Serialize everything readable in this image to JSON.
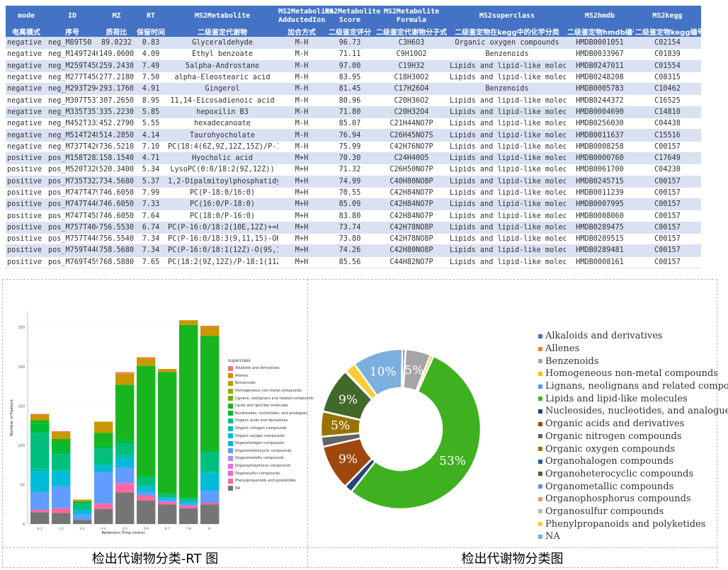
{
  "table": {
    "headers": [
      "mode",
      "ID",
      "MZ",
      "RT",
      "MS2Metabolite",
      "MS2Metabolite\nAdductedIon",
      "MS2Metabolite\nScore",
      "MS2Metabolite\nFormula",
      "MS2superclass",
      "MS2hmdb",
      "MS2kegg"
    ],
    "headers_cn": [
      "电离模式",
      "序号",
      "质荷比",
      "保留时间",
      "二级鉴定代谢物",
      "加合方式",
      "二级鉴定评分",
      "二级鉴定代谢物分子式",
      "二级鉴定物在kegg中的化学分类",
      "二级鉴定物hmdb编号",
      "二级鉴定物kegg编号"
    ],
    "rows": [
      [
        "negative",
        "neg_M89T50",
        "89.0232",
        "0.83",
        "Glyceraldehyde",
        "M-H",
        "96.73",
        "C3H6O3",
        "Organic oxygen compounds",
        "HMDB0001051",
        "C02154"
      ],
      [
        "negative",
        "neg_M149T246",
        "149.0600",
        "4.09",
        "Ethyl benzoate",
        "M-H",
        "71.11",
        "C9H10O2",
        "Benzenoids",
        "HMDB0033967",
        "C01839"
      ],
      [
        "negative",
        "neg_M259T450",
        "259.2430",
        "7.49",
        "5alpha-Androstane",
        "M-H",
        "97.00",
        "C19H32",
        "Lipids and lipid-like molecules",
        "HMDB0247011",
        "C01554"
      ],
      [
        "negative",
        "neg_M277T450",
        "277.2180",
        "7.50",
        "alpha-Eleostearic acid",
        "M-H",
        "83.95",
        "C18H30O2",
        "Lipids and lipid-like molecules",
        "HMDB0248208",
        "C08315"
      ],
      [
        "negative",
        "neg_M293T294",
        "293.1760",
        "4.91",
        "Gingerol",
        "M-H",
        "81.45",
        "C17H26O4",
        "Benzenoids",
        "HMDB0005783",
        "C10462"
      ],
      [
        "negative",
        "neg_M307T537",
        "307.2650",
        "8.95",
        "11,14-Eicosadienoic acid",
        "M-H",
        "80.96",
        "C20H36O2",
        "Lipids and lipid-like molecules",
        "HMDB0244372",
        "C16525"
      ],
      [
        "negative",
        "neg_M335T351",
        "335.2230",
        "5.85",
        "hepoxilin B3",
        "M-H",
        "71.80",
        "C20H32O4",
        "Lipids and lipid-like molecules",
        "HMDB0004690",
        "C14810"
      ],
      [
        "negative",
        "neg_M452T333",
        "452.2790",
        "5.55",
        "hexadecanoate",
        "M-H",
        "85.07",
        "C21H44NO7P",
        "Lipids and lipid-like molecules",
        "HMDB0256030",
        "C04438"
      ],
      [
        "negative",
        "neg_M514T248",
        "514.2850",
        "4.14",
        "Taurohyocholate",
        "M-H",
        "76.94",
        "C26H45NO7S",
        "Lipids and lipid-like molecules",
        "HMDB0011637",
        "C15516"
      ],
      [
        "negative",
        "neg_M737T426",
        "736.5210",
        "7.10",
        "PC(18:4(6Z,9Z,12Z,15Z)/P-16:0)",
        "M-H",
        "75.99",
        "C42H76NO7P",
        "Lipids and lipid-like molecules",
        "HMDB0008258",
        "C00157"
      ],
      [
        "positive",
        "pos_M158T283",
        "158.1540",
        "4.71",
        "Hyocholic acid",
        "M+H",
        "70.30",
        "C24H40O5",
        "Lipids and lipid-like molecules",
        "HMDB0000760",
        "C17649"
      ],
      [
        "positive",
        "pos_M520T320",
        "520.3400",
        "5.34",
        "LysoPC(0:0/18:2(9Z,12Z))",
        "M+H",
        "71.32",
        "C26H50NO7P",
        "Lipids and lipid-like molecules",
        "HMDB0061700",
        "C04230"
      ],
      [
        "positive",
        "pos_M735T322",
        "734.5680",
        "5.37",
        "1,2-Dipalmitoylphosphatidylcholine",
        "M+H",
        "74.99",
        "C40H80NO8P",
        "Lipids and lipid-like molecules",
        "HMDB0245715",
        "C00157"
      ],
      [
        "positive",
        "pos_M747T479",
        "746.6050",
        "7.99",
        "PC(P-18:0/16:0)",
        "M+H",
        "70.55",
        "C42H84NO7P",
        "Lipids and lipid-like molecules",
        "HMDB0011239",
        "C00157"
      ],
      [
        "positive",
        "pos_M747T440",
        "746.6050",
        "7.33",
        "PC(16:0/P-18:0)",
        "M+H",
        "85.09",
        "C42H84NO7P",
        "Lipids and lipid-like molecules",
        "HMDB0007995",
        "C00157"
      ],
      [
        "positive",
        "pos_M747T458",
        "746.6050",
        "7.64",
        "PC(18:0/P-16:0)",
        "M+H",
        "83.80",
        "C42H84NO7P",
        "Lipids and lipid-like molecules",
        "HMDB0008060",
        "C00157"
      ],
      [
        "positive",
        "pos_M757T404",
        "756.5530",
        "6.74",
        "PC(P-16:0/18:2(10E,12Z)+=O(9))",
        "M+H",
        "73.74",
        "C42H78NO8P",
        "Lipids and lipid-like molecules",
        "HMDB0289475",
        "C00157"
      ],
      [
        "positive",
        "pos_M757T440",
        "756.5540",
        "7.34",
        "PC(P-16:0/18:3(9,11,15)-OH(13))",
        "M+H",
        "73.80",
        "C42H78NO8P",
        "Lipids and lipid-like molecules",
        "HMDB0289515",
        "C00157"
      ],
      [
        "positive",
        "pos_M759T440",
        "758.5680",
        "7.34",
        "PC(P-16:0/18:1(12Z)-O(9S,10R))",
        "M+H",
        "74.26",
        "C42H80NO8P",
        "Lipids and lipid-like molecules",
        "HMDB0289481",
        "C00157"
      ],
      [
        "positive",
        "pos_M769T459",
        "768.5880",
        "7.65",
        "PC(18:2(9Z,12Z)/P-18:1(11Z))",
        "M+H",
        "85.56",
        "C44H82NO7P",
        "Lipids and lipid-like molecules",
        "HMDB0008161",
        "C00157"
      ]
    ]
  },
  "captions": {
    "left": "检出代谢物分类-RT 图",
    "right": "检出代谢物分类图"
  },
  "categories": [
    {
      "name": "Alkaloids and derivatives",
      "color": "#4472c4",
      "bar_color": "#f8766d"
    },
    {
      "name": "Allenes",
      "color": "#ed7d31",
      "bar_color": "#e58700"
    },
    {
      "name": "Benzenoids",
      "color": "#a5a5a5",
      "bar_color": "#c99800"
    },
    {
      "name": "Homogeneous non-metal compounds",
      "color": "#ffc000",
      "bar_color": "#a3a500"
    },
    {
      "name": "Lignans, neolignans and related compounds",
      "color": "#5b9bd5",
      "bar_color": "#6bb100"
    },
    {
      "name": "Lipids and lipid-like molecules",
      "color": "#3fb01f",
      "bar_color": "#18b51e"
    },
    {
      "name": "Nucleosides, nucleotides, and analogues",
      "color": "#264478",
      "bar_color": "#00ba38"
    },
    {
      "name": "Organic acids and derivatives",
      "color": "#9e480e",
      "bar_color": "#00bf7d"
    },
    {
      "name": "Organic nitrogen compounds",
      "color": "#636363",
      "bar_color": "#00c0af"
    },
    {
      "name": "Organic oxygen compounds",
      "color": "#997300",
      "bar_color": "#00bcd8"
    },
    {
      "name": "Organohalogen compounds",
      "color": "#255e91",
      "bar_color": "#00b0f6"
    },
    {
      "name": "Organoheterocyclic compounds",
      "color": "#43682b",
      "bar_color": "#619cff"
    },
    {
      "name": "Organometallic compounds",
      "color": "#698ed0",
      "bar_color": "#b983ff"
    },
    {
      "name": "Organophosphorus compounds",
      "color": "#f1975a",
      "bar_color": "#e76bf3"
    },
    {
      "name": "Organosulfur compounds",
      "color": "#b7b7b7",
      "bar_color": "#fd61d1"
    },
    {
      "name": "Phenylpropanoids and polyketides",
      "color": "#ffcd33",
      "bar_color": "#ff67a4"
    },
    {
      "name": "NA",
      "color": "#7cafdd",
      "bar_color": "#757575"
    }
  ],
  "chart_data": [
    {
      "type": "bar",
      "title": "",
      "xlabel": "Retention Time (mins)",
      "ylabel": "Number of Feature",
      "legend_title": "superclass",
      "ylim": [
        0,
        270
      ],
      "yticks": [
        0,
        50,
        100,
        150,
        200,
        250
      ],
      "categories": [
        "0-1",
        "1-2",
        "2-3",
        "3-4",
        "4-5",
        "5-6",
        "6-7",
        "7-8",
        "8-"
      ],
      "series": [
        {
          "name": "NA",
          "values": [
            15,
            14,
            5,
            19,
            40,
            30,
            25,
            20,
            25
          ]
        },
        {
          "name": "Phenylpropanoids and polyketides",
          "values": [
            3,
            6,
            0,
            7,
            10,
            6,
            3,
            3,
            2
          ]
        },
        {
          "name": "Organosulfur compounds",
          "values": [
            0,
            0,
            0,
            0,
            2,
            0,
            0,
            0,
            0
          ]
        },
        {
          "name": "Organophosphorus compounds",
          "values": [
            0,
            0,
            0,
            0,
            0,
            0,
            0,
            0,
            0
          ]
        },
        {
          "name": "Organometallic compounds",
          "values": [
            0,
            0,
            0,
            0,
            0,
            0,
            0,
            0,
            0
          ]
        },
        {
          "name": "Organoheterocyclic compounds",
          "values": [
            23,
            28,
            7,
            40,
            20,
            5,
            3,
            3,
            15
          ]
        },
        {
          "name": "Organohalogen compounds",
          "values": [
            0,
            0,
            0,
            0,
            0,
            0,
            0,
            0,
            0
          ]
        },
        {
          "name": "Organic oxygen compounds",
          "values": [
            25,
            18,
            5,
            7,
            10,
            5,
            2,
            2,
            22
          ]
        },
        {
          "name": "Organic nitrogen compounds",
          "values": [
            5,
            3,
            1,
            3,
            5,
            3,
            1,
            1,
            2
          ]
        },
        {
          "name": "Organic acids and derivatives",
          "values": [
            45,
            20,
            8,
            20,
            15,
            10,
            4,
            4,
            25
          ]
        },
        {
          "name": "Nucleosides, nucleotides, and analogues",
          "values": [
            12,
            10,
            2,
            5,
            5,
            2,
            0,
            0,
            3
          ]
        },
        {
          "name": "Lipids and lipid-like molecules",
          "values": [
            4,
            9,
            1,
            15,
            70,
            140,
            155,
            220,
            145
          ]
        },
        {
          "name": "Lignans, neolignans and related compounds",
          "values": [
            0,
            0,
            0,
            0,
            0,
            0,
            0,
            0,
            0
          ]
        },
        {
          "name": "Homogeneous non-metal compounds",
          "values": [
            0,
            0,
            0,
            0,
            0,
            0,
            0,
            0,
            0
          ]
        },
        {
          "name": "Benzenoids",
          "values": [
            7,
            9,
            2,
            14,
            14,
            10,
            4,
            6,
            12
          ]
        },
        {
          "name": "Allenes",
          "values": [
            0,
            0,
            0,
            0,
            0,
            0,
            0,
            0,
            0
          ]
        },
        {
          "name": "Alkaloids and derivatives",
          "values": [
            1,
            1,
            0,
            0,
            2,
            1,
            0,
            0,
            1
          ]
        }
      ]
    },
    {
      "type": "pie",
      "title": "",
      "labels": [
        "Alkaloids and derivatives",
        "Allenes",
        "Benzenoids",
        "Homogeneous non-metal compounds",
        "Lignans, neolignans and related compounds",
        "Lipids and lipid-like molecules",
        "Nucleosides, nucleotides, and analogues",
        "Organic acids and derivatives",
        "Organic nitrogen compounds",
        "Organic oxygen compounds",
        "Organohalogen compounds",
        "Organoheterocyclic compounds",
        "Organometallic compounds",
        "Organophosphorus compounds",
        "Organosulfur compounds",
        "Phenylpropanoids and polyketides",
        "NA"
      ],
      "values": [
        0.6,
        0.05,
        5,
        0.6,
        0.05,
        53,
        1.6,
        9,
        2,
        5,
        0.05,
        9,
        0.05,
        0.05,
        0.05,
        2.2,
        10
      ],
      "data_labels": [
        "",
        "",
        "5%",
        "",
        "",
        "53%",
        "",
        "9%",
        "",
        "5%",
        "",
        "9%",
        "",
        "",
        "",
        "",
        "10%"
      ]
    }
  ]
}
